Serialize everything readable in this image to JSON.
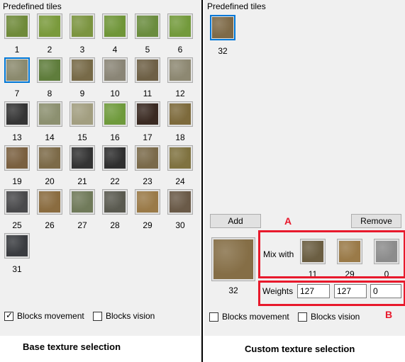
{
  "base": {
    "section_label": "Predefined tiles",
    "tiles": [
      {
        "n": "1",
        "c": "#6f8a3a"
      },
      {
        "n": "2",
        "c": "#7a9a3c"
      },
      {
        "n": "3",
        "c": "#7b9440"
      },
      {
        "n": "4",
        "c": "#6f9538"
      },
      {
        "n": "5",
        "c": "#6a8c3e"
      },
      {
        "n": "6",
        "c": "#739a3c"
      },
      {
        "n": "7",
        "c": "#8b8a6e"
      },
      {
        "n": "8",
        "c": "#5f7d3c"
      },
      {
        "n": "9",
        "c": "#776a48"
      },
      {
        "n": "10",
        "c": "#8a8576"
      },
      {
        "n": "11",
        "c": "#6e6046"
      },
      {
        "n": "12",
        "c": "#8d8872"
      },
      {
        "n": "13",
        "c": "#353535"
      },
      {
        "n": "14",
        "c": "#8c9070"
      },
      {
        "n": "15",
        "c": "#a29e80"
      },
      {
        "n": "16",
        "c": "#6f9a3c"
      },
      {
        "n": "17",
        "c": "#3a2a22"
      },
      {
        "n": "18",
        "c": "#7d6a3c"
      },
      {
        "n": "19",
        "c": "#7a6040"
      },
      {
        "n": "20",
        "c": "#7c6a48"
      },
      {
        "n": "21",
        "c": "#333333"
      },
      {
        "n": "22",
        "c": "#2f2f2f"
      },
      {
        "n": "23",
        "c": "#7a6a4a"
      },
      {
        "n": "24",
        "c": "#7f7240"
      },
      {
        "n": "25",
        "c": "#4a4a4c"
      },
      {
        "n": "26",
        "c": "#8a6c40"
      },
      {
        "n": "27",
        "c": "#707a5a"
      },
      {
        "n": "28",
        "c": "#5a5a50"
      },
      {
        "n": "29",
        "c": "#9a7a48"
      },
      {
        "n": "30",
        "c": "#6a5a48"
      },
      {
        "n": "31",
        "c": "#3a3c40"
      }
    ],
    "blocks_movement_label": "Blocks movement",
    "blocks_movement_checked": true,
    "blocks_vision_label": "Blocks vision",
    "blocks_vision_checked": false,
    "caption": "Base texture selection"
  },
  "custom": {
    "section_label": "Predefined tiles",
    "tiles": [
      {
        "n": "32",
        "c": "#7e6a48"
      }
    ],
    "add_label": "Add",
    "remove_label": "Remove",
    "preview": {
      "n": "32",
      "c": "#856e46"
    },
    "mix_with_label": "Mix with",
    "mix_tiles": [
      {
        "n": "11",
        "c": "#6b5e42"
      },
      {
        "n": "29",
        "c": "#9a7a48"
      },
      {
        "n": "0",
        "c": "#8c8c8c"
      }
    ],
    "weights_label": "Weights",
    "weights": [
      "127",
      "127",
      "0"
    ],
    "blocks_movement_label": "Blocks movement",
    "blocks_movement_checked": false,
    "blocks_vision_label": "Blocks vision",
    "blocks_vision_checked": false,
    "caption": "Custom texture selection"
  },
  "annotations": {
    "a": "A",
    "b": "B",
    "color": "#e8192c"
  }
}
